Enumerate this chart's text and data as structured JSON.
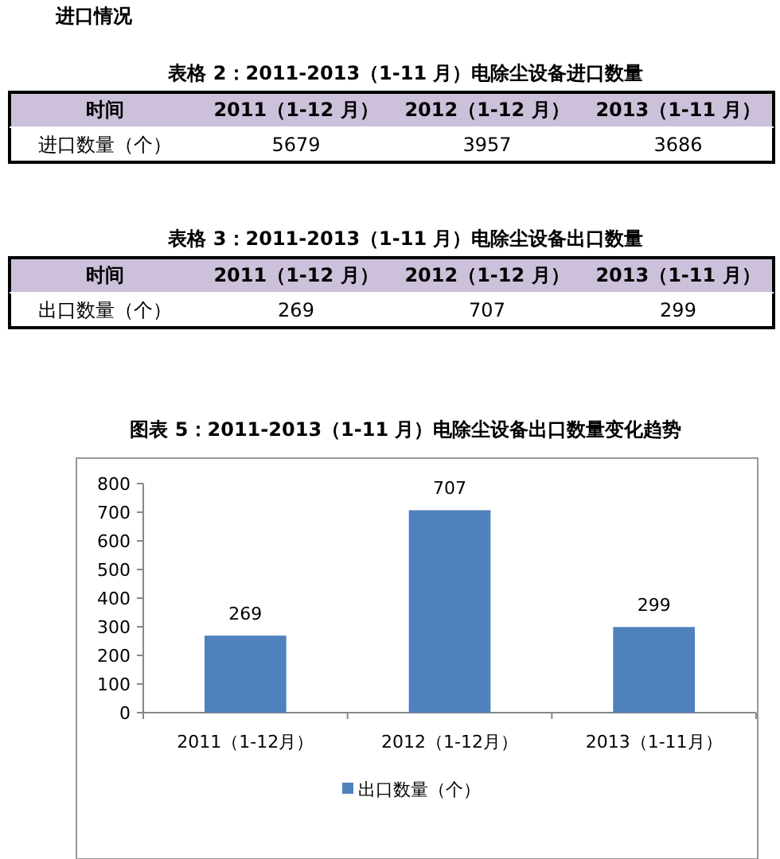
{
  "chart_data": [
    {
      "type": "other",
      "annotations": [
        "进口情况"
      ],
      "title": "表格 2：2011-2013（1-11 月）电除尘设备进口数量",
      "xlabel": "时间",
      "ylabel": "进口数量（个）",
      "categories": [
        "2011（1-12 月）",
        "2012（1-12 月）",
        "2013（1-11 月）"
      ],
      "values": [
        5679,
        3957,
        3686
      ],
      "data_labels": true
    },
    {
      "type": "other",
      "title": "表格 3：2011-2013（1-11 月）电除尘设备出口数量",
      "xlabel": "时间",
      "ylabel": "出口数量（个）",
      "categories": [
        "2011（1-12 月）",
        "2012（1-12 月）",
        "2013（1-11 月）"
      ],
      "annotations": [
        "269",
        "707",
        "299"
      ]
    },
    {
      "type": "bar",
      "title": "图表 5：2011-2013（1-11 月）电除尘设备出口数量变化趋势",
      "categories": [
        "2011（1-12月）",
        "2012（1-12月）",
        "2013（1-11月）"
      ],
      "series": [
        {
          "name": "出口数量（个）",
          "color": "#4f81bd",
          "values": [
            269,
            707,
            299
          ]
        }
      ],
      "ylim": [
        0,
        800
      ],
      "yticks": [
        0,
        100,
        200,
        300,
        400,
        500,
        600,
        700,
        800
      ],
      "data_labels": true,
      "legend": "bottom"
    }
  ]
}
